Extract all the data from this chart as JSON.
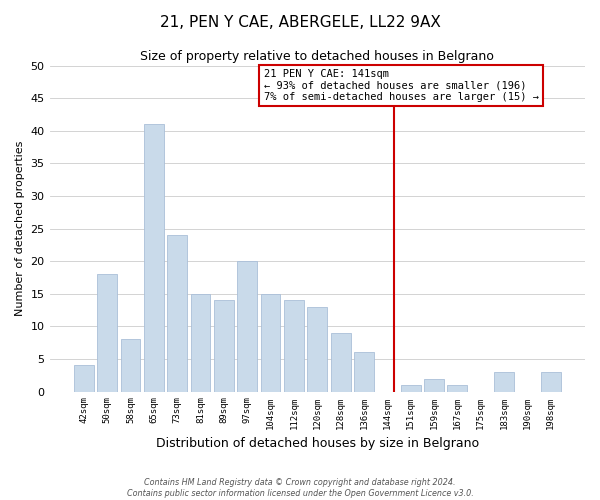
{
  "title": "21, PEN Y CAE, ABERGELE, LL22 9AX",
  "subtitle": "Size of property relative to detached houses in Belgrano",
  "xlabel": "Distribution of detached houses by size in Belgrano",
  "ylabel": "Number of detached properties",
  "bar_labels": [
    "42sqm",
    "50sqm",
    "58sqm",
    "65sqm",
    "73sqm",
    "81sqm",
    "89sqm",
    "97sqm",
    "104sqm",
    "112sqm",
    "120sqm",
    "128sqm",
    "136sqm",
    "144sqm",
    "151sqm",
    "159sqm",
    "167sqm",
    "175sqm",
    "183sqm",
    "190sqm",
    "198sqm"
  ],
  "bar_values": [
    4,
    18,
    8,
    41,
    24,
    15,
    14,
    20,
    15,
    14,
    13,
    9,
    6,
    0,
    1,
    2,
    1,
    0,
    3,
    0,
    3
  ],
  "bar_color": "#c9daea",
  "bar_edge_color": "#aabfd8",
  "ylim": [
    0,
    50
  ],
  "yticks": [
    0,
    5,
    10,
    15,
    20,
    25,
    30,
    35,
    40,
    45,
    50
  ],
  "vline_color": "#cc0000",
  "annotation_title": "21 PEN Y CAE: 141sqm",
  "annotation_line1": "← 93% of detached houses are smaller (196)",
  "annotation_line2": "7% of semi-detached houses are larger (15) →",
  "annotation_box_color": "#ffffff",
  "annotation_border_color": "#cc0000",
  "footnote1": "Contains HM Land Registry data © Crown copyright and database right 2024.",
  "footnote2": "Contains public sector information licensed under the Open Government Licence v3.0.",
  "background_color": "#ffffff",
  "grid_color": "#cccccc"
}
